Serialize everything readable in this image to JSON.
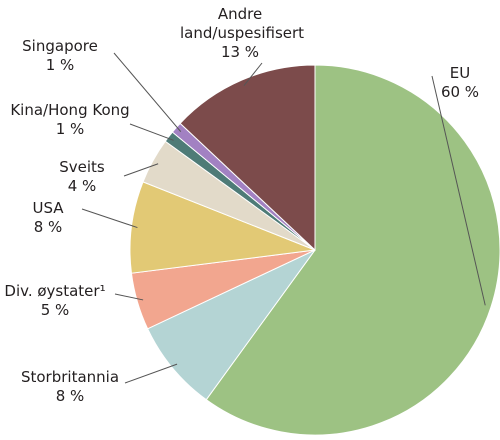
{
  "chart_data": {
    "type": "pie",
    "categories": [
      "EU",
      "Storbritannia",
      "Div. øystater¹",
      "USA",
      "Sveits",
      "Kina/Hong Kong",
      "Singapore",
      "Andre land/uspesifisert"
    ],
    "values": [
      60,
      8,
      5,
      8,
      4,
      1,
      1,
      13
    ],
    "value_labels": [
      "60 %",
      "8 %",
      "5 %",
      "8 %",
      "4 %",
      "1 %",
      "1 %",
      "13 %"
    ],
    "colors": [
      "#9dc283",
      "#b4d4d4",
      "#f2a68f",
      "#e2c975",
      "#e2dac9",
      "#4e7b77",
      "#a281c2",
      "#7c4b4b"
    ]
  }
}
